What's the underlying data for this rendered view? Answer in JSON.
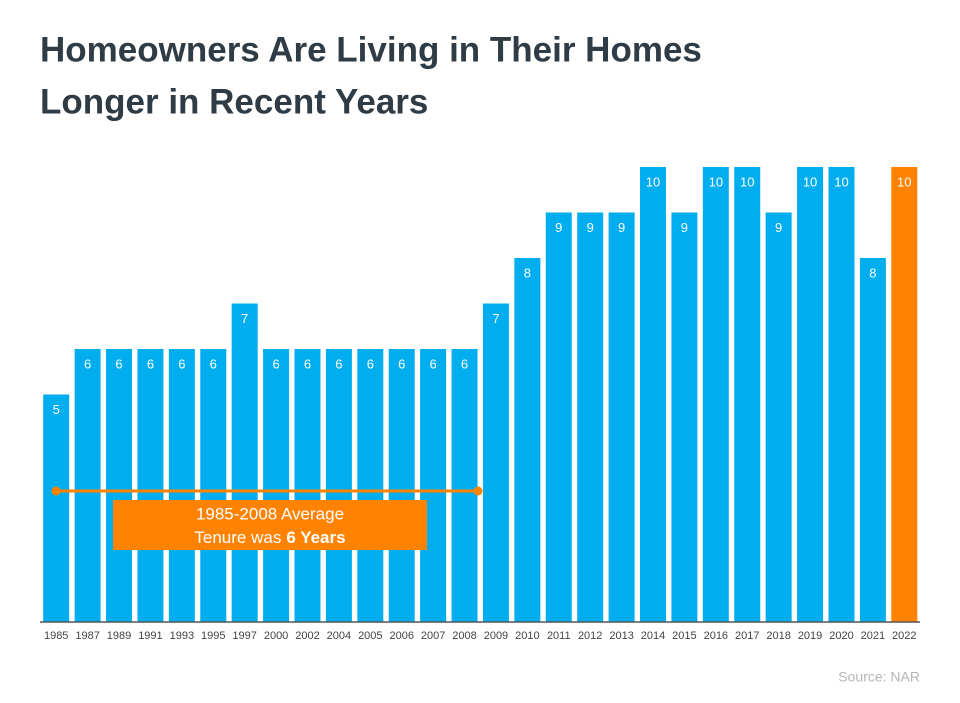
{
  "chart_data": {
    "type": "bar",
    "title": [
      "Homeowners Are Living in Their Homes",
      "Longer in Recent Years"
    ],
    "categories": [
      "1985",
      "1987",
      "1989",
      "1991",
      "1993",
      "1995",
      "1997",
      "2000",
      "2002",
      "2004",
      "2005",
      "2006",
      "2007",
      "2008",
      "2009",
      "2010",
      "2011",
      "2012",
      "2013",
      "2014",
      "2015",
      "2016",
      "2017",
      "2018",
      "2019",
      "2020",
      "2021",
      "2022"
    ],
    "values": [
      5,
      6,
      6,
      6,
      6,
      6,
      7,
      6,
      6,
      6,
      6,
      6,
      6,
      6,
      7,
      8,
      9,
      9,
      9,
      10,
      9,
      10,
      10,
      9,
      10,
      10,
      8,
      10
    ],
    "colors": [
      "#00aeef",
      "#00aeef",
      "#00aeef",
      "#00aeef",
      "#00aeef",
      "#00aeef",
      "#00aeef",
      "#00aeef",
      "#00aeef",
      "#00aeef",
      "#00aeef",
      "#00aeef",
      "#00aeef",
      "#00aeef",
      "#00aeef",
      "#00aeef",
      "#00aeef",
      "#00aeef",
      "#00aeef",
      "#00aeef",
      "#00aeef",
      "#00aeef",
      "#00aeef",
      "#00aeef",
      "#00aeef",
      "#00aeef",
      "#00aeef",
      "#ff8200"
    ],
    "ylim": [
      0,
      10
    ],
    "annotation": {
      "line1": "1985-2008 Average",
      "line2": "Tenure was",
      "highlight": "6 Years",
      "color": "#ff8200"
    },
    "source": "Source: NAR"
  }
}
